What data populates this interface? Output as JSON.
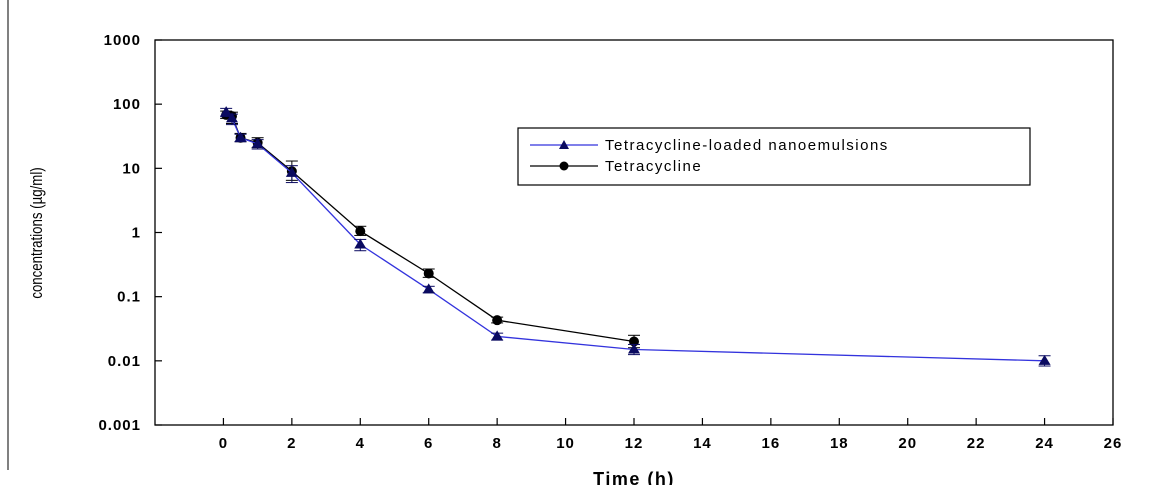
{
  "chart_data": {
    "type": "line",
    "xlabel": "Time (h)",
    "ylabel": "concentrations (µg/ml)",
    "y_scale": "log",
    "xlim": [
      -2,
      26
    ],
    "ylim": [
      0.001,
      1000
    ],
    "x_ticks": [
      0,
      2,
      4,
      6,
      8,
      10,
      12,
      14,
      16,
      18,
      20,
      22,
      24,
      26
    ],
    "x_tick_labels": [
      "0",
      "2",
      "4",
      "6",
      "8",
      "10",
      "12",
      "14",
      "16",
      "18",
      "20",
      "22",
      "24",
      "26"
    ],
    "y_ticks": [
      0.001,
      0.01,
      0.1,
      1,
      10,
      100,
      1000
    ],
    "y_tick_labels": [
      "0.001",
      "0.01",
      "0.1",
      "1",
      "10",
      "100",
      "1000"
    ],
    "grid": false,
    "legend_position": "top-right",
    "series": [
      {
        "name": "Tetracycline-loaded nanoemulsions",
        "color": "#3333dd",
        "marker": "triangle",
        "x": [
          0.08,
          0.25,
          0.5,
          1,
          2,
          4,
          6,
          8,
          12,
          24
        ],
        "y": [
          75,
          60,
          30,
          24,
          8.5,
          0.65,
          0.13,
          0.024,
          0.015,
          0.01
        ],
        "err_low": [
          64,
          48,
          26,
          20,
          6.0,
          0.52,
          0.115,
          0.021,
          0.0125,
          0.0083
        ],
        "err_high": [
          86,
          70,
          34,
          28,
          11.0,
          0.78,
          0.145,
          0.027,
          0.018,
          0.012
        ]
      },
      {
        "name": "Tetracycline",
        "color": "#000000",
        "marker": "circle",
        "x": [
          0.08,
          0.25,
          0.5,
          1,
          2,
          4,
          6,
          8,
          12
        ],
        "y": [
          68,
          65,
          30,
          25,
          9.0,
          1.05,
          0.23,
          0.043,
          0.02
        ],
        "err_low": [
          60,
          50,
          26,
          21,
          6.5,
          0.9,
          0.2,
          0.039,
          0.016
        ],
        "err_high": [
          78,
          75,
          35,
          30,
          13,
          1.25,
          0.27,
          0.048,
          0.025
        ]
      }
    ]
  }
}
